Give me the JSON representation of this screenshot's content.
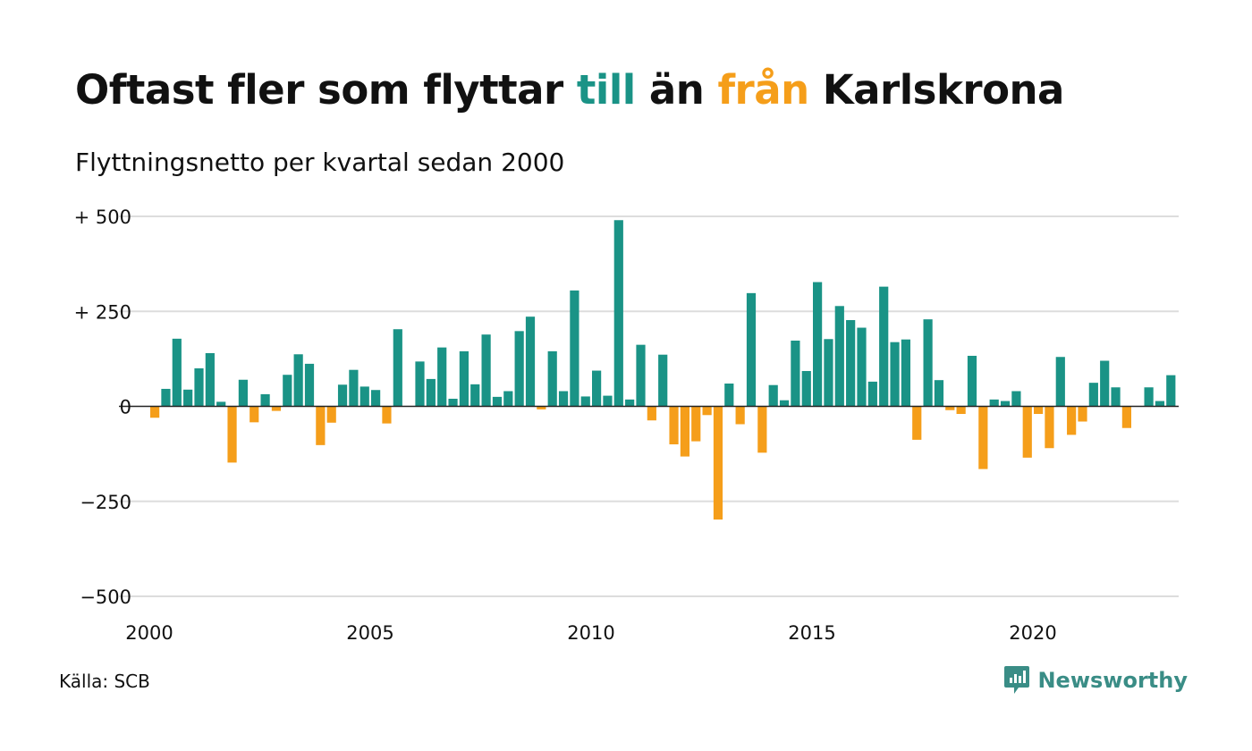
{
  "header": {
    "title_parts": [
      {
        "text": "Oftast fler som flyttar ",
        "color": "#111111"
      },
      {
        "text": "till",
        "color": "#1a9386"
      },
      {
        "text": " än ",
        "color": "#111111"
      },
      {
        "text": "från",
        "color": "#f59e1a"
      },
      {
        "text": " Karlskrona",
        "color": "#111111"
      }
    ],
    "subtitle": "Flyttningsnetto per kvartal sedan 2000"
  },
  "footer": {
    "source": "Källa: SCB",
    "brand": "Newsworthy",
    "brand_color": "#3a8d86"
  },
  "colors": {
    "positive": "#1a9386",
    "negative": "#f59e1a",
    "grid": "#dddddd",
    "zero_line": "#222222",
    "text": "#111111"
  },
  "chart_data": {
    "type": "bar",
    "title": "Oftast fler som flyttar till än från Karlskrona",
    "subtitle": "Flyttningsnetto per kvartal sedan 2000",
    "x_start": 2000,
    "periods_per_year": 4,
    "x_ticks": [
      {
        "value": 2000,
        "label": "2000"
      },
      {
        "value": 2005,
        "label": "2005"
      },
      {
        "value": 2010,
        "label": "2010"
      },
      {
        "value": 2015,
        "label": "2015"
      },
      {
        "value": 2020,
        "label": "2020"
      }
    ],
    "ylim": [
      -500,
      500
    ],
    "y_ticks": [
      {
        "value": 500,
        "label": "+ 500"
      },
      {
        "value": 250,
        "label": "+ 250"
      },
      {
        "value": 0,
        "label": "0"
      },
      {
        "value": -250,
        "label": "−250"
      },
      {
        "value": -500,
        "label": "−500"
      }
    ],
    "grid": true,
    "values": [
      -30,
      46,
      178,
      44,
      100,
      140,
      12,
      -148,
      70,
      -42,
      32,
      -12,
      83,
      137,
      112,
      -102,
      -43,
      57,
      96,
      52,
      43,
      -45,
      203,
      0,
      118,
      72,
      155,
      20,
      145,
      58,
      189,
      25,
      40,
      198,
      236,
      -8,
      145,
      40,
      305,
      26,
      94,
      28,
      490,
      18,
      162,
      -37,
      136,
      -100,
      -132,
      -92,
      -23,
      -298,
      60,
      -47,
      298,
      -122,
      56,
      16,
      173,
      93,
      327,
      177,
      264,
      227,
      207,
      65,
      315,
      169,
      176,
      -88,
      229,
      69,
      -10,
      -20,
      133,
      -165,
      18,
      14,
      40,
      -135,
      -20,
      -110,
      130,
      -75,
      -40,
      62,
      120,
      50,
      -57,
      0,
      50,
      14,
      82
    ]
  }
}
